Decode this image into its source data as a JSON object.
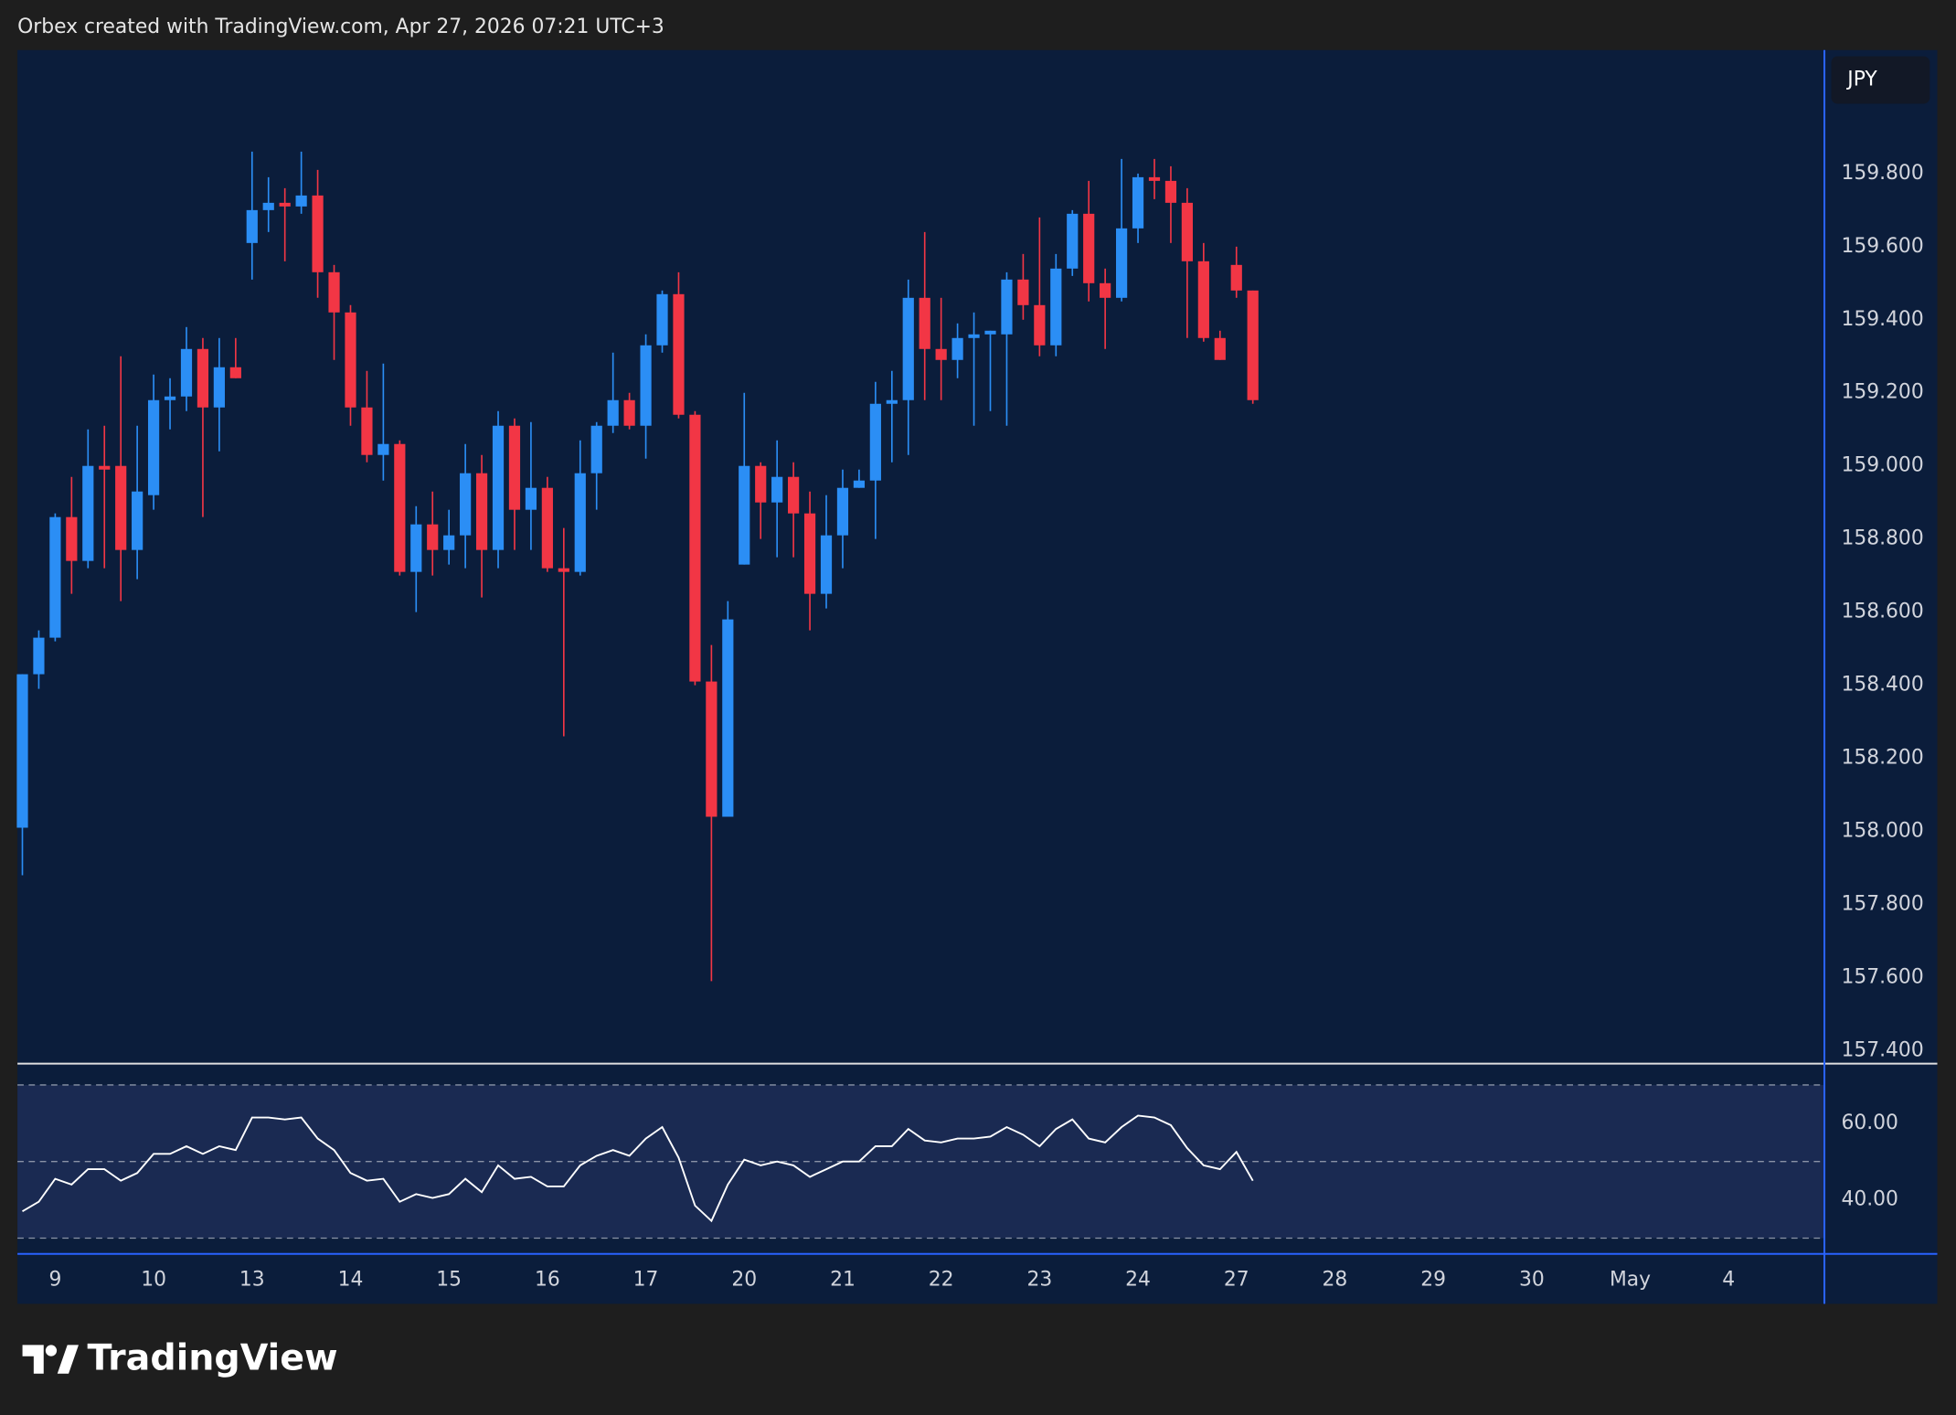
{
  "header": "Orbex created with TradingView.com, Apr 27, 2026 07:21 UTC+3",
  "footer": {
    "brand": "TradingView"
  },
  "chart_data": [
    {
      "type": "candlestick",
      "symbol_label": "JPY",
      "up_color": "#2b8ef5",
      "down_color": "#f23645",
      "grid": false,
      "xlim": [
        -0.3,
        109.8
      ],
      "xticks": [
        {
          "value": 2,
          "label": "9"
        },
        {
          "value": 8,
          "label": "10"
        },
        {
          "value": 14,
          "label": "13"
        },
        {
          "value": 20,
          "label": "14"
        },
        {
          "value": 26,
          "label": "15"
        },
        {
          "value": 32,
          "label": "16"
        },
        {
          "value": 38,
          "label": "17"
        },
        {
          "value": 44,
          "label": "20"
        },
        {
          "value": 50,
          "label": "21"
        },
        {
          "value": 56,
          "label": "22"
        },
        {
          "value": 62,
          "label": "23"
        },
        {
          "value": 68,
          "label": "24"
        },
        {
          "value": 74,
          "label": "27"
        },
        {
          "value": 80,
          "label": "28"
        },
        {
          "value": 86,
          "label": "29"
        },
        {
          "value": 92,
          "label": "30"
        },
        {
          "value": 98,
          "label": "May"
        },
        {
          "value": 104,
          "label": "4"
        }
      ],
      "ylim": [
        157.366,
        160.138
      ],
      "yticks": [
        {
          "value": 157.4,
          "label": "157.400"
        },
        {
          "value": 157.6,
          "label": "157.600"
        },
        {
          "value": 157.8,
          "label": "157.800"
        },
        {
          "value": 158.0,
          "label": "158.000"
        },
        {
          "value": 158.2,
          "label": "158.200"
        },
        {
          "value": 158.4,
          "label": "158.400"
        },
        {
          "value": 158.6,
          "label": "158.600"
        },
        {
          "value": 158.8,
          "label": "158.800"
        },
        {
          "value": 159.0,
          "label": "159.000"
        },
        {
          "value": 159.2,
          "label": "159.200"
        },
        {
          "value": 159.4,
          "label": "159.400"
        },
        {
          "value": 159.6,
          "label": "159.600"
        },
        {
          "value": 159.8,
          "label": "159.800"
        }
      ],
      "open": [
        158.01,
        158.43,
        158.53,
        158.86,
        158.74,
        159.0,
        159.0,
        158.77,
        158.92,
        159.18,
        159.19,
        159.32,
        159.16,
        159.27,
        159.61,
        159.7,
        159.72,
        159.71,
        159.74,
        159.53,
        159.42,
        159.16,
        159.03,
        159.06,
        158.71,
        158.84,
        158.77,
        158.81,
        158.98,
        158.77,
        159.11,
        158.88,
        158.94,
        158.72,
        158.71,
        158.98,
        159.11,
        159.18,
        159.11,
        159.33,
        159.47,
        159.14,
        158.41,
        158.04,
        158.73,
        159.0,
        158.9,
        158.97,
        158.87,
        158.65,
        158.81,
        158.94,
        158.96,
        159.17,
        159.18,
        159.46,
        159.32,
        159.29,
        159.35,
        159.36,
        159.36,
        159.51,
        159.44,
        159.33,
        159.54,
        159.69,
        159.5,
        159.46,
        159.65,
        159.79,
        159.78,
        159.72,
        159.56,
        159.35,
        159.55,
        159.48
      ],
      "high": [
        158.43,
        158.55,
        158.87,
        158.97,
        159.1,
        159.11,
        159.3,
        159.11,
        159.25,
        159.24,
        159.38,
        159.35,
        159.35,
        159.35,
        159.86,
        159.79,
        159.76,
        159.86,
        159.81,
        159.55,
        159.44,
        159.26,
        159.28,
        159.07,
        158.89,
        158.93,
        158.88,
        159.06,
        159.03,
        159.15,
        159.13,
        159.12,
        158.97,
        158.83,
        159.07,
        159.12,
        159.31,
        159.2,
        159.36,
        159.48,
        159.53,
        159.15,
        158.51,
        158.63,
        159.2,
        159.01,
        159.07,
        159.01,
        158.93,
        158.92,
        158.99,
        158.99,
        159.23,
        159.26,
        159.51,
        159.64,
        159.46,
        159.39,
        159.42,
        159.37,
        159.53,
        159.58,
        159.68,
        159.58,
        159.7,
        159.78,
        159.54,
        159.84,
        159.8,
        159.84,
        159.82,
        159.76,
        159.61,
        159.37,
        159.6,
        159.48
      ],
      "low": [
        157.88,
        158.39,
        158.52,
        158.65,
        158.72,
        158.72,
        158.63,
        158.69,
        158.88,
        159.1,
        159.15,
        158.86,
        159.04,
        159.24,
        159.51,
        159.64,
        159.56,
        159.69,
        159.46,
        159.29,
        159.11,
        159.01,
        158.96,
        158.7,
        158.6,
        158.7,
        158.73,
        158.72,
        158.64,
        158.72,
        158.77,
        158.77,
        158.71,
        158.26,
        158.7,
        158.88,
        159.09,
        159.1,
        159.02,
        159.31,
        159.13,
        158.4,
        157.59,
        158.04,
        158.73,
        158.8,
        158.75,
        158.75,
        158.55,
        158.61,
        158.72,
        158.94,
        158.8,
        159.01,
        159.03,
        159.18,
        159.18,
        159.24,
        159.11,
        159.15,
        159.11,
        159.4,
        159.3,
        159.3,
        159.52,
        159.45,
        159.32,
        159.45,
        159.61,
        159.73,
        159.61,
        159.35,
        159.34,
        159.29,
        159.46,
        159.17
      ],
      "close": [
        158.43,
        158.53,
        158.86,
        158.74,
        159.0,
        158.99,
        158.77,
        158.93,
        159.18,
        159.19,
        159.32,
        159.16,
        159.27,
        159.24,
        159.7,
        159.72,
        159.71,
        159.74,
        159.53,
        159.42,
        159.16,
        159.03,
        159.06,
        158.71,
        158.84,
        158.77,
        158.81,
        158.98,
        158.77,
        159.11,
        158.88,
        158.94,
        158.72,
        158.71,
        158.98,
        159.11,
        159.18,
        159.11,
        159.33,
        159.47,
        159.14,
        158.41,
        158.04,
        158.58,
        159.0,
        158.9,
        158.97,
        158.87,
        158.65,
        158.81,
        158.94,
        158.96,
        159.17,
        159.18,
        159.46,
        159.32,
        159.29,
        159.35,
        159.36,
        159.37,
        159.51,
        159.44,
        159.33,
        159.54,
        159.69,
        159.5,
        159.46,
        159.65,
        159.79,
        159.78,
        159.72,
        159.56,
        159.35,
        159.29,
        159.48,
        159.18
      ]
    },
    {
      "type": "line",
      "color": "#ffffff",
      "band_color": "#1a2a52",
      "xlim": [
        -0.3,
        109.8
      ],
      "ylim": [
        26.2,
        75.4
      ],
      "yticks": [
        {
          "value": 40,
          "label": "40.00"
        },
        {
          "value": 60,
          "label": "60.00"
        }
      ],
      "levels": [
        30,
        50,
        70
      ],
      "values": [
        37,
        39.5,
        45.5,
        44,
        48,
        48,
        45,
        47,
        52,
        52,
        54,
        52,
        54,
        53,
        61.5,
        61.5,
        61,
        61.5,
        56,
        53,
        47,
        45,
        45.5,
        39.5,
        41.5,
        40.5,
        41.5,
        45.5,
        42,
        49,
        45.5,
        46,
        43.5,
        43.5,
        49,
        51.5,
        53,
        51.5,
        56,
        59,
        51,
        38.5,
        34.5,
        44,
        50.5,
        49,
        50,
        49,
        46,
        48,
        50,
        50,
        54,
        54,
        58.5,
        55.5,
        55,
        56,
        56,
        56.5,
        59,
        57,
        54,
        58.5,
        61,
        56,
        55,
        59,
        62,
        61.5,
        59.5,
        53.5,
        49,
        48,
        52.5,
        45
      ]
    }
  ]
}
